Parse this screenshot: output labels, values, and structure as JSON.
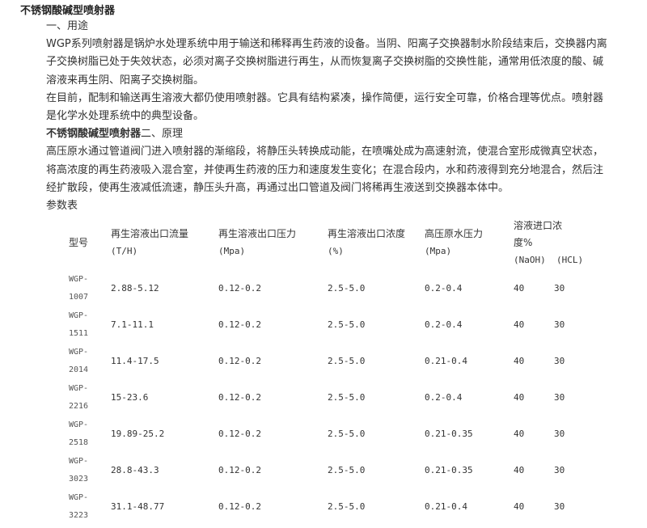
{
  "title": "不锈钢酸碱型喷射器",
  "sections": {
    "usage_heading": "一、用途",
    "usage_p1": "WGP系列喷射器是锅炉水处理系统中用于输送和稀释再生药液的设备。当阴、阳离子交换器制水阶段结束后，交换器内离子交换树脂已处于失效状态，必须对离子交换树脂进行再生，从而恢复离子交换树脂的交换性能，通常用低浓度的酸、碱溶液来再生阴、阳离子交换树脂。",
    "usage_p2": "在目前，配制和输送再生溶液大都仍使用喷射器。它具有结构紧凑，操作简便，运行安全可靠，价格合理等优点。喷射器是化学水处理系统中的典型设备。",
    "principle_bold": "不锈钢酸碱型喷射器",
    "principle_heading": "二、原理",
    "principle_p": "高压原水通过管道阀门进入喷射器的渐缩段，将静压头转换成动能，在喷嘴处成为高速射流，使混合室形成微真空状态，将高浓度的再生药液吸入混合室，并使再生药液的压力和速度发生变化；在混合段内，水和药液得到充分地混合，然后注经扩散段，使再生液减低流速，静压头升高，再通过出口管道及阀门将稀再生液送到交换器本体中。",
    "table_label": "参数表"
  },
  "table": {
    "headers": {
      "model": "型号",
      "flow": "再生溶液出口流量",
      "flow_unit": "(T/H)",
      "pressure": "再生溶液出口压力",
      "pressure_unit": "(Mpa)",
      "conc": "再生溶液出口浓度",
      "conc_unit": "(%)",
      "raw": "高压原水压力",
      "raw_unit": "(Mpa)",
      "inlet": "溶液进口浓度%",
      "naoh": "(NaOH)",
      "hcl": "(HCL)"
    },
    "rows": [
      {
        "prefix": "WGP-",
        "num": "1007",
        "flow": "2.88-5.12",
        "pressure": "0.12-0.2",
        "conc": "2.5-5.0",
        "raw": "0.2-0.4",
        "naoh": "40",
        "hcl": "30"
      },
      {
        "prefix": "WGP-",
        "num": "1511",
        "flow": "7.1-11.1",
        "pressure": "0.12-0.2",
        "conc": "2.5-5.0",
        "raw": "0.2-0.4",
        "naoh": "40",
        "hcl": "30"
      },
      {
        "prefix": "WGP-",
        "num": "2014",
        "flow": "11.4-17.5",
        "pressure": "0.12-0.2",
        "conc": "2.5-5.0",
        "raw": "0.21-0.4",
        "naoh": "40",
        "hcl": "30"
      },
      {
        "prefix": "WGP-",
        "num": "2216",
        "flow": "15-23.6",
        "pressure": "0.12-0.2",
        "conc": "2.5-5.0",
        "raw": "0.2-0.4",
        "naoh": "40",
        "hcl": "30"
      },
      {
        "prefix": "WGP-",
        "num": "2518",
        "flow": "19.89-25.2",
        "pressure": "0.12-0.2",
        "conc": "2.5-5.0",
        "raw": "0.21-0.35",
        "naoh": "40",
        "hcl": "30"
      },
      {
        "prefix": "WGP-",
        "num": "3023",
        "flow": "28.8-43.3",
        "pressure": "0.12-0.2",
        "conc": "2.5-5.0",
        "raw": "0.21-0.35",
        "naoh": "40",
        "hcl": "30"
      },
      {
        "prefix": "WGP-",
        "num": "3223",
        "flow": "31.1-48.77",
        "pressure": "0.12-0.2",
        "conc": "2.5-5.0",
        "raw": "0.21-0.4",
        "naoh": "40",
        "hcl": "30"
      }
    ]
  }
}
